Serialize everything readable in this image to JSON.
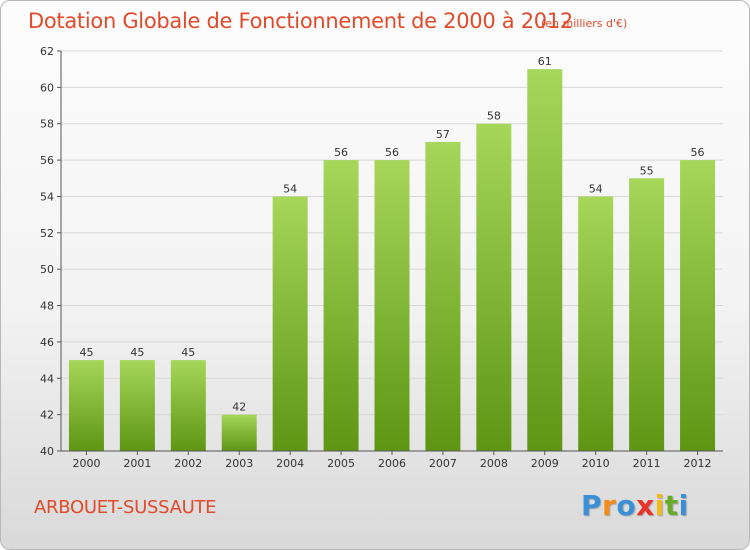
{
  "chart_data": {
    "type": "bar",
    "title": "Dotation Globale de Fonctionnement de 2000 à 2012",
    "subtitle": "(en milliers d'€)",
    "categories": [
      "2000",
      "2001",
      "2002",
      "2003",
      "2004",
      "2005",
      "2006",
      "2007",
      "2008",
      "2009",
      "2010",
      "2011",
      "2012"
    ],
    "values": [
      45,
      45,
      45,
      42,
      54,
      56,
      56,
      57,
      58,
      61,
      54,
      55,
      56
    ],
    "ylim": [
      40,
      62
    ],
    "yticks": [
      40,
      42,
      44,
      46,
      48,
      50,
      52,
      54,
      56,
      58,
      60,
      62
    ],
    "xlabel": "",
    "ylabel": "",
    "grid": true,
    "colors": {
      "bar_top": "#a6d65a",
      "bar_bottom": "#5e9614",
      "grid": "#d8d8d8"
    }
  },
  "footer": {
    "place": "ARBOUET-SUSSAUTE",
    "logo_letters": [
      "P",
      "r",
      "o",
      "x",
      "i",
      "t",
      "i"
    ],
    "logo_colors": [
      "#3b8fd6",
      "#f28c1c",
      "#3b8fd6",
      "#e8332a",
      "#f2b81c",
      "#6aaa2a",
      "#3b8fd6"
    ]
  }
}
